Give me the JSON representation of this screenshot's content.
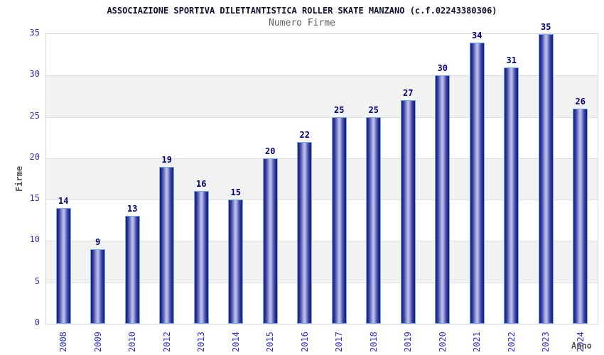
{
  "header": {
    "title": "ASSOCIAZIONE SPORTIVA DILETTANTISTICA ROLLER SKATE MANZANO (c.f.02243380306)",
    "subtitle": "Numero Firme"
  },
  "chart_data": {
    "type": "bar",
    "title": "Numero Firme",
    "categories": [
      "2008",
      "2009",
      "2010",
      "2012",
      "2013",
      "2014",
      "2015",
      "2016",
      "2017",
      "2018",
      "2019",
      "2020",
      "2021",
      "2022",
      "2023",
      "2024"
    ],
    "values": [
      14,
      9,
      13,
      19,
      16,
      15,
      20,
      22,
      25,
      25,
      27,
      30,
      34,
      31,
      35,
      26
    ],
    "xlabel": "Anno",
    "ylabel": "Firme",
    "ylim": [
      0,
      35
    ],
    "y_ticks": [
      0,
      5,
      10,
      15,
      20,
      25,
      30,
      35
    ],
    "grid": "alternating-horizontal-bands",
    "legend_position": "none",
    "value_labels": "above-bars"
  },
  "colors": {
    "bar_edge": "#15157d",
    "bar_mid": "#3c42a0",
    "bar_highlight": "#b6bcec",
    "bar_outline": "#6fb0e8",
    "value_label": "#00007d",
    "tick_label": "#3030cf",
    "axis_label": "#555555",
    "title": "#101030",
    "subtitle": "#5f5f5f",
    "band_alt": "#f2f2f2",
    "grid_line": "#dedede"
  }
}
